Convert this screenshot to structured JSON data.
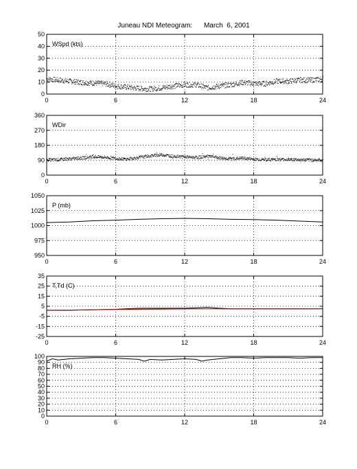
{
  "title": "Juneau NDI Meteogram:      March  6, 2001",
  "colors": {
    "frame": "#000000",
    "grid": "#000000",
    "primary": "#000000",
    "dewpoint": "#cc0000"
  },
  "chart_data": [
    {
      "type": "scatter",
      "label": "WSpd (kts)",
      "ylim": [
        0,
        50
      ],
      "yticks": [
        "0",
        "10",
        "20",
        "30",
        "40",
        "50"
      ],
      "xlim": [
        0,
        24
      ],
      "xticks": [
        "0",
        "6",
        "12",
        "18",
        "24"
      ],
      "grid": true,
      "series": [
        {
          "x": [
            0,
            1,
            2,
            3,
            4,
            5,
            6,
            7,
            8,
            9,
            10,
            11,
            12,
            13,
            14,
            15,
            16,
            17,
            18,
            19,
            20,
            21,
            22,
            23,
            24
          ],
          "y": [
            13,
            12,
            11,
            10,
            9.5,
            9,
            7,
            6,
            5,
            4.5,
            5.5,
            7,
            8,
            8,
            5.5,
            7,
            8,
            10,
            9,
            9,
            11,
            11,
            12,
            12,
            13
          ]
        }
      ]
    },
    {
      "type": "scatter",
      "label": "WDir",
      "ylim": [
        0,
        360
      ],
      "yticks": [
        "0",
        "90",
        "180",
        "270",
        "360"
      ],
      "xlim": [
        0,
        24
      ],
      "xticks": [
        "0",
        "6",
        "12",
        "18",
        "24"
      ],
      "grid": true,
      "series": [
        {
          "x": [
            0,
            1,
            2,
            3,
            4,
            5,
            6,
            7,
            8,
            9,
            10,
            11,
            12,
            13,
            14,
            15,
            16,
            17,
            18,
            19,
            20,
            21,
            22,
            23,
            24
          ],
          "y": [
            93,
            95,
            100,
            105,
            112,
            110,
            102,
            98,
            108,
            118,
            125,
            115,
            112,
            108,
            115,
            106,
            100,
            104,
            98,
            95,
            97,
            96,
            94,
            93,
            92
          ]
        }
      ]
    },
    {
      "type": "line",
      "label": "P (mb)",
      "ylim": [
        950,
        1050
      ],
      "yticks": [
        "950",
        "975",
        "1000",
        "1025",
        "1050"
      ],
      "xlim": [
        0,
        24
      ],
      "xticks": [
        "0",
        "6",
        "12",
        "18",
        "24"
      ],
      "grid": true,
      "series": [
        {
          "x": [
            0,
            2,
            4,
            6,
            8,
            10,
            12,
            14,
            16,
            18,
            20,
            22,
            24
          ],
          "y": [
            1005,
            1006,
            1008,
            1009,
            1010.5,
            1011.5,
            1012,
            1011.5,
            1010.5,
            1010,
            1009,
            1007.5,
            1006
          ]
        }
      ]
    },
    {
      "type": "line",
      "label": "T,Td (C)",
      "ylim": [
        -25,
        35
      ],
      "yticks": [
        "-25",
        "-15",
        "-5",
        "5",
        "15",
        "25",
        "35"
      ],
      "xlim": [
        0,
        24
      ],
      "xticks": [
        "0",
        "6",
        "12",
        "18",
        "24"
      ],
      "grid": true,
      "series": [
        {
          "x": [
            0,
            2,
            4,
            6,
            7,
            8,
            9,
            10,
            12,
            13,
            14,
            15,
            16,
            18,
            20,
            22,
            24
          ],
          "y": [
            1,
            1,
            1.5,
            2,
            2.5,
            3,
            3,
            3,
            3,
            3.5,
            4,
            3,
            2.5,
            2.5,
            2.5,
            2.5,
            2.5
          ]
        },
        {
          "x": [
            0,
            2,
            4,
            6,
            8,
            10,
            12,
            14,
            16,
            18,
            20,
            22,
            24
          ],
          "y": [
            1,
            1.2,
            1.5,
            1.8,
            2,
            2.2,
            2.4,
            2.5,
            2.4,
            2.4,
            2.4,
            2.4,
            2.5
          ]
        }
      ]
    },
    {
      "type": "line",
      "label": "RH (%)",
      "ylim": [
        0,
        100
      ],
      "yticks": [
        "0",
        "10",
        "20",
        "30",
        "40",
        "50",
        "60",
        "70",
        "80",
        "90",
        "100"
      ],
      "xlim": [
        0,
        24
      ],
      "xticks": [
        "0",
        "6",
        "12",
        "18",
        "24"
      ],
      "grid": true,
      "series": [
        {
          "x": [
            0,
            0.5,
            1,
            2,
            3,
            4,
            5,
            6,
            7,
            8,
            8.5,
            9,
            10,
            11,
            12,
            13,
            13.5,
            14,
            15,
            16,
            17,
            18,
            19,
            20,
            21,
            22,
            23,
            24
          ],
          "y": [
            92,
            96,
            94,
            96,
            97,
            98,
            98,
            97,
            96,
            95,
            92,
            95,
            94,
            95,
            96,
            95,
            92,
            94,
            96,
            98,
            98,
            97,
            98,
            98,
            98,
            97,
            98,
            98
          ]
        }
      ]
    }
  ]
}
